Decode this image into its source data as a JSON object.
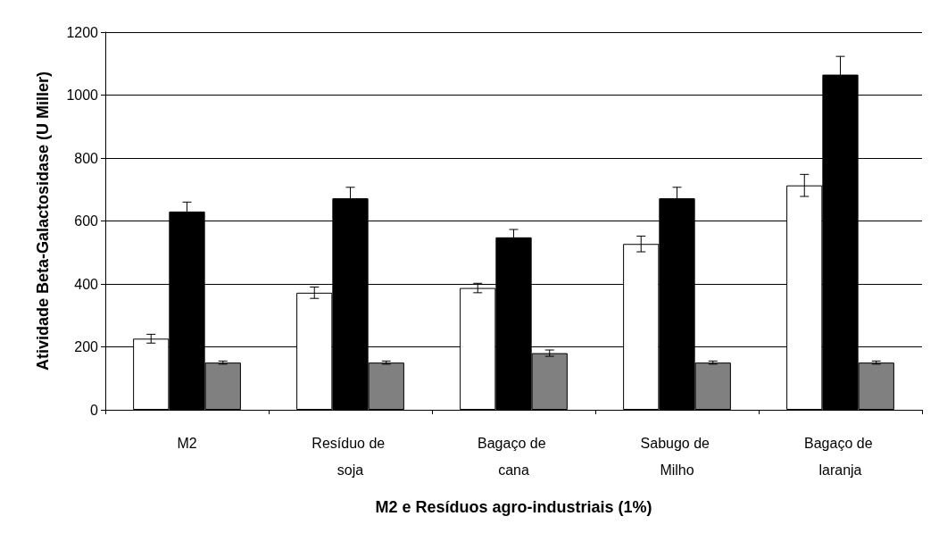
{
  "chart_data": {
    "type": "bar",
    "xlabel": "M2 e Resíduos agro-industriais (1%)",
    "ylabel": "Atividade Beta-Galactosidase (U Miller)",
    "categories": [
      "M2",
      "Resíduo de soja",
      "Bagaço de cana",
      "Sabugo de Milho",
      "Bagaço de laranja"
    ],
    "series": [
      {
        "color": "#ffffff",
        "values": [
          226,
          372,
          387,
          527,
          713
        ],
        "errors": [
          14,
          18,
          15,
          25,
          35
        ]
      },
      {
        "color": "#000000",
        "values": [
          630,
          672,
          548,
          672,
          1065
        ],
        "errors": [
          30,
          35,
          25,
          35,
          58
        ]
      },
      {
        "color": "#808080",
        "values": [
          150,
          150,
          180,
          150,
          150
        ],
        "errors": [
          5,
          5,
          10,
          5,
          5
        ]
      }
    ],
    "ylim": [
      0,
      1200
    ],
    "yticks": [
      0,
      200,
      400,
      600,
      800,
      1000,
      1200
    ],
    "grid": "y"
  }
}
